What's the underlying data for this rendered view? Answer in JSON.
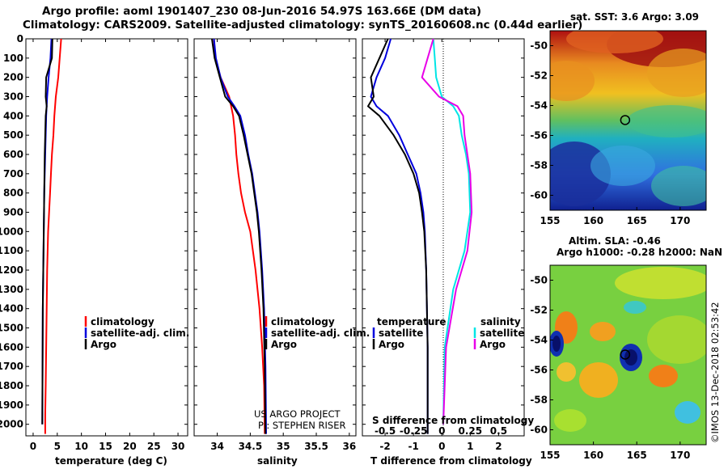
{
  "titles": {
    "line1": "Argo profile: aoml 1901407_230 08-Jun-2016 54.97S 163.66E (DM data)",
    "line2": "Climatology: CARS2009. Satellite-adjusted climatology: synTS_20160608.nc (0.44d earlier)"
  },
  "colors": {
    "climatology": "#ff0000",
    "satellite": "#0000dd",
    "argo": "#000000",
    "sal_satellite": "#00e5e5",
    "sal_argo": "#e800e8"
  },
  "chart_data": [
    {
      "type": "line",
      "title": "",
      "xlabel": "temperature (deg C)",
      "ylabel": "",
      "xlim": [
        -1.5,
        32
      ],
      "ylim": [
        2060,
        0
      ],
      "xticks": [
        0,
        5,
        10,
        15,
        20,
        25,
        30
      ],
      "yticks": [
        0,
        100,
        200,
        300,
        400,
        500,
        600,
        700,
        800,
        900,
        1000,
        1100,
        1200,
        1300,
        1400,
        1500,
        1600,
        1700,
        1800,
        1900,
        2000
      ],
      "legend": [
        "climatology",
        "satellite-adj. clim.",
        "Argo"
      ],
      "series": [
        {
          "name": "climatology",
          "color": "#ff0000",
          "x": [
            5.8,
            5.5,
            5.2,
            4.7,
            4.4,
            4.2,
            3.9,
            3.7,
            3.5,
            3.3,
            3.1,
            2.9,
            2.8,
            2.7,
            2.6,
            2.5,
            2.5
          ],
          "y": [
            0,
            100,
            200,
            300,
            400,
            500,
            600,
            700,
            800,
            900,
            1000,
            1200,
            1400,
            1600,
            1800,
            1950,
            2050
          ]
        },
        {
          "name": "satellite-adj. clim.",
          "color": "#0000dd",
          "x": [
            3.8,
            3.6,
            3.2,
            2.9,
            2.7,
            2.6,
            2.5,
            2.4,
            2.3,
            2.2,
            2.1,
            2.0,
            1.95,
            1.9
          ],
          "y": [
            0,
            100,
            200,
            300,
            400,
            500,
            600,
            700,
            800,
            1000,
            1200,
            1400,
            1700,
            2000
          ]
        },
        {
          "name": "Argo",
          "color": "#000000",
          "x": [
            4.0,
            3.9,
            2.7,
            2.6,
            2.8,
            2.6,
            2.5,
            2.4,
            2.3,
            2.2,
            2.1,
            2.0,
            1.95,
            1.9
          ],
          "y": [
            0,
            100,
            200,
            300,
            350,
            400,
            500,
            600,
            800,
            1000,
            1200,
            1400,
            1700,
            2000
          ]
        }
      ]
    },
    {
      "type": "line",
      "xlabel": "salinity",
      "xlim": [
        33.65,
        36.1
      ],
      "ylim": [
        2060,
        0
      ],
      "xticks": [
        34,
        34.5,
        35,
        35.5,
        36
      ],
      "legend": [
        "climatology",
        "satellite-adj. clim.",
        "Argo"
      ],
      "annotations": [
        "US ARGO PROJECT",
        "PI: STEPHEN RISER"
      ],
      "series": [
        {
          "name": "climatology",
          "color": "#ff0000",
          "x": [
            33.95,
            33.97,
            34.05,
            34.18,
            34.24,
            34.27,
            34.29,
            34.32,
            34.36,
            34.42,
            34.5,
            34.58,
            34.64,
            34.68,
            34.71,
            34.72
          ],
          "y": [
            0,
            100,
            200,
            300,
            400,
            500,
            600,
            700,
            800,
            900,
            1000,
            1200,
            1400,
            1600,
            1800,
            2050
          ]
        },
        {
          "name": "satellite-adj. clim.",
          "color": "#0000dd",
          "x": [
            33.95,
            33.98,
            34.05,
            34.16,
            34.26,
            34.35,
            34.42,
            34.47,
            34.53,
            34.57,
            34.61,
            34.64,
            34.68,
            34.71,
            34.73,
            34.74
          ],
          "y": [
            0,
            100,
            200,
            300,
            350,
            400,
            500,
            600,
            700,
            800,
            900,
            1000,
            1200,
            1400,
            1700,
            2050
          ]
        },
        {
          "name": "Argo",
          "color": "#000000",
          "x": [
            33.92,
            33.96,
            34.04,
            34.12,
            34.24,
            34.33,
            34.4,
            34.46,
            34.52,
            34.56,
            34.6,
            34.63,
            34.67,
            34.7,
            34.72,
            34.73
          ],
          "y": [
            0,
            100,
            200,
            300,
            350,
            400,
            500,
            600,
            700,
            800,
            900,
            1000,
            1200,
            1400,
            1700,
            2050
          ]
        }
      ]
    },
    {
      "type": "line",
      "xlabel": "T difference from climatology",
      "top_label": "S difference from climatology",
      "xlim": [
        -2.8,
        2.9
      ],
      "ylim": [
        2060,
        0
      ],
      "xticks": [
        -2,
        -1,
        0,
        1,
        2
      ],
      "top_xticks": [
        "-0.5",
        "-0.25",
        "0",
        "0.25",
        "0.5"
      ],
      "top_xtick_T_positions": [
        -2,
        -1,
        0,
        1,
        2
      ],
      "legend_temperature": {
        "title": "temperature",
        "items": [
          "satellite",
          "Argo"
        ]
      },
      "legend_salinity": {
        "title": "salinity",
        "items": [
          "satellite",
          "Argo"
        ]
      },
      "series": [
        {
          "name": "temperature satellite",
          "color": "#0000dd",
          "x": [
            -1.8,
            -2.0,
            -2.3,
            -2.5,
            -2.3,
            -1.9,
            -1.5,
            -1.2,
            -0.9,
            -0.75,
            -0.65,
            -0.6,
            -0.55,
            -0.5,
            -0.5
          ],
          "y": [
            0,
            100,
            200,
            300,
            350,
            400,
            500,
            600,
            700,
            800,
            900,
            1000,
            1200,
            1600,
            2050
          ]
        },
        {
          "name": "temperature Argo",
          "color": "#000000",
          "x": [
            -1.9,
            -2.2,
            -2.5,
            -2.4,
            -2.6,
            -2.2,
            -1.7,
            -1.3,
            -1.0,
            -0.8,
            -0.7,
            -0.62,
            -0.55,
            -0.5,
            -0.5
          ],
          "y": [
            0,
            100,
            200,
            300,
            350,
            400,
            500,
            600,
            700,
            800,
            900,
            1000,
            1200,
            1600,
            2050
          ]
        },
        {
          "name": "salinity satellite",
          "color": "#00e5e5",
          "x": [
            -0.3,
            -0.25,
            -0.2,
            0.0,
            0.4,
            0.6,
            0.7,
            0.85,
            0.95,
            1.0,
            0.8,
            0.4,
            0.1,
            0.05
          ],
          "y": [
            0,
            100,
            200,
            300,
            350,
            400,
            500,
            600,
            700,
            900,
            1100,
            1300,
            1600,
            2000
          ]
        },
        {
          "name": "salinity Argo",
          "color": "#e800e8",
          "x": [
            -0.3,
            -0.5,
            -0.7,
            -0.1,
            0.55,
            0.75,
            0.8,
            0.9,
            1.0,
            1.05,
            0.9,
            0.5,
            0.15,
            0.05
          ],
          "y": [
            0,
            100,
            200,
            300,
            350,
            400,
            500,
            600,
            700,
            900,
            1100,
            1300,
            1600,
            2000
          ]
        }
      ]
    },
    {
      "type": "heatmap",
      "title": "sat. SST: 3.6 Argo: 3.09",
      "xlim": [
        155,
        173
      ],
      "ylim": [
        -61,
        -49
      ],
      "xticks": [
        155,
        160,
        165,
        170
      ],
      "yticks": [
        -50,
        -52,
        -54,
        -56,
        -58,
        -60
      ],
      "profile_location": {
        "lon": 163.66,
        "lat": -54.97
      },
      "colormap": "SST jet"
    },
    {
      "type": "heatmap",
      "title": "Altim. SLA: -0.46",
      "subtitle": "Argo h1000: -0.28 h2000: NaN",
      "xlim": [
        155,
        173
      ],
      "ylim": [
        -61,
        -49
      ],
      "xticks": [
        155,
        160,
        165,
        170
      ],
      "yticks": [
        -50,
        -52,
        -54,
        -56,
        -58,
        -60
      ],
      "profile_location": {
        "lon": 163.66,
        "lat": -54.97
      },
      "colormap": "SLA jet"
    }
  ],
  "credit": "©IMOS 13-Dec-2018 02:53:42"
}
